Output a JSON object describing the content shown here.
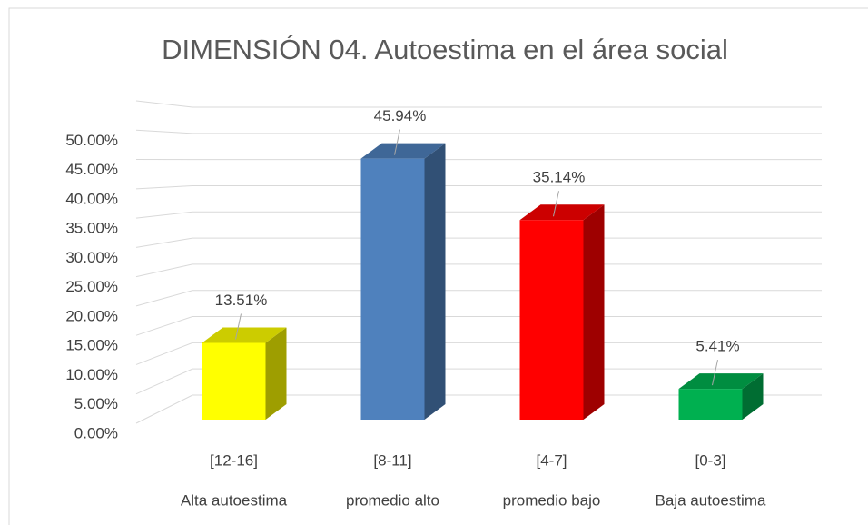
{
  "chart_data": {
    "type": "bar3d",
    "title": "DIMENSIÓN 04. Autoestima en el área social",
    "categories": [
      "[12-16]",
      "[8-11]",
      "[4-7]",
      "[0-3]"
    ],
    "category_descriptions": [
      "Alta autoestima",
      "promedio alto",
      "promedio bajo",
      "Baja autoestima"
    ],
    "values": [
      13.51,
      45.94,
      35.14,
      5.41
    ],
    "value_labels": [
      "13.51%",
      "45.94%",
      "35.14%",
      "5.41%"
    ],
    "colors": [
      "#ffff00",
      "#4f81bd",
      "#ff0000",
      "#00b050"
    ],
    "ylim": [
      0,
      55
    ],
    "yticks": [
      {
        "value": 0,
        "label": "0.00%"
      },
      {
        "value": 5,
        "label": "5.00%"
      },
      {
        "value": 10,
        "label": "10.00%"
      },
      {
        "value": 15,
        "label": "15.00%"
      },
      {
        "value": 20,
        "label": "20.00%"
      },
      {
        "value": 25,
        "label": "25.00%"
      },
      {
        "value": 30,
        "label": "30.00%"
      },
      {
        "value": 35,
        "label": "35.00%"
      },
      {
        "value": 40,
        "label": "40.00%"
      },
      {
        "value": 45,
        "label": "45.00%"
      },
      {
        "value": 50,
        "label": "50.00%"
      }
    ],
    "grid": true
  }
}
